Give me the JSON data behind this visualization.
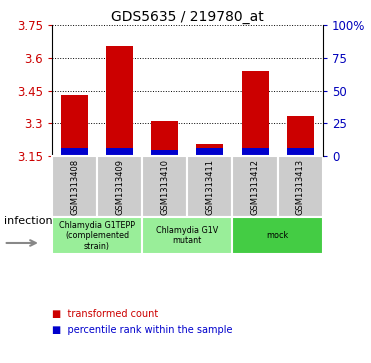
{
  "title": "GDS5635 / 219780_at",
  "samples": [
    "GSM1313408",
    "GSM1313409",
    "GSM1313410",
    "GSM1313411",
    "GSM1313412",
    "GSM1313413"
  ],
  "red_values": [
    3.43,
    3.655,
    3.31,
    3.205,
    3.54,
    3.335
  ],
  "blue_values": [
    3.185,
    3.185,
    3.18,
    3.185,
    3.185,
    3.185
  ],
  "ymin": 3.15,
  "ymax": 3.75,
  "yticks": [
    3.15,
    3.3,
    3.45,
    3.6,
    3.75
  ],
  "ytick_labels": [
    "3.15",
    "3.3",
    "3.45",
    "3.6",
    "3.75"
  ],
  "y2ticks": [
    0,
    25,
    50,
    75,
    100
  ],
  "y2tick_labels": [
    "0",
    "25",
    "50",
    "75",
    "100%"
  ],
  "group_defs": [
    [
      0,
      1,
      "Chlamydia G1TEPP\n(complemented\nstrain)",
      "#99ee99"
    ],
    [
      2,
      3,
      "Chlamydia G1V\nmutant",
      "#99ee99"
    ],
    [
      4,
      5,
      "mock",
      "#44cc44"
    ]
  ],
  "infection_label": "infection",
  "red_color": "#cc0000",
  "blue_color": "#0000cc",
  "bar_width": 0.6,
  "background_color": "#ffffff",
  "label_color_left": "#cc0000",
  "label_color_right": "#0000bb",
  "sample_bg_color": "#cccccc"
}
